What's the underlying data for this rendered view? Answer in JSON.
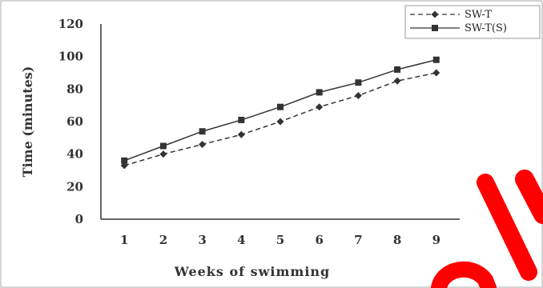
{
  "chart_data": {
    "type": "line",
    "title": "",
    "xlabel": "Weeks of swimming",
    "ylabel": "Time (minutes)",
    "x": [
      1,
      2,
      3,
      4,
      5,
      6,
      7,
      8,
      9
    ],
    "xlim": [
      0.4,
      9.6
    ],
    "ylim": [
      0,
      120
    ],
    "yticks": [
      0,
      20,
      40,
      60,
      80,
      100,
      120
    ],
    "grid": false,
    "legend_position": "top-right",
    "series": [
      {
        "name": "SW-T",
        "values": [
          33,
          40,
          46,
          52,
          60,
          69,
          76,
          85,
          90
        ],
        "line_style": "dashed",
        "marker": "diamond",
        "color": "#333333"
      },
      {
        "name": "SW-T(S)",
        "values": [
          36,
          45,
          54,
          61,
          69,
          78,
          84,
          92,
          98
        ],
        "line_style": "solid",
        "marker": "square",
        "color": "#333333"
      }
    ],
    "border_color": "#aaaaaa",
    "annotation_color": "#ff0000"
  }
}
